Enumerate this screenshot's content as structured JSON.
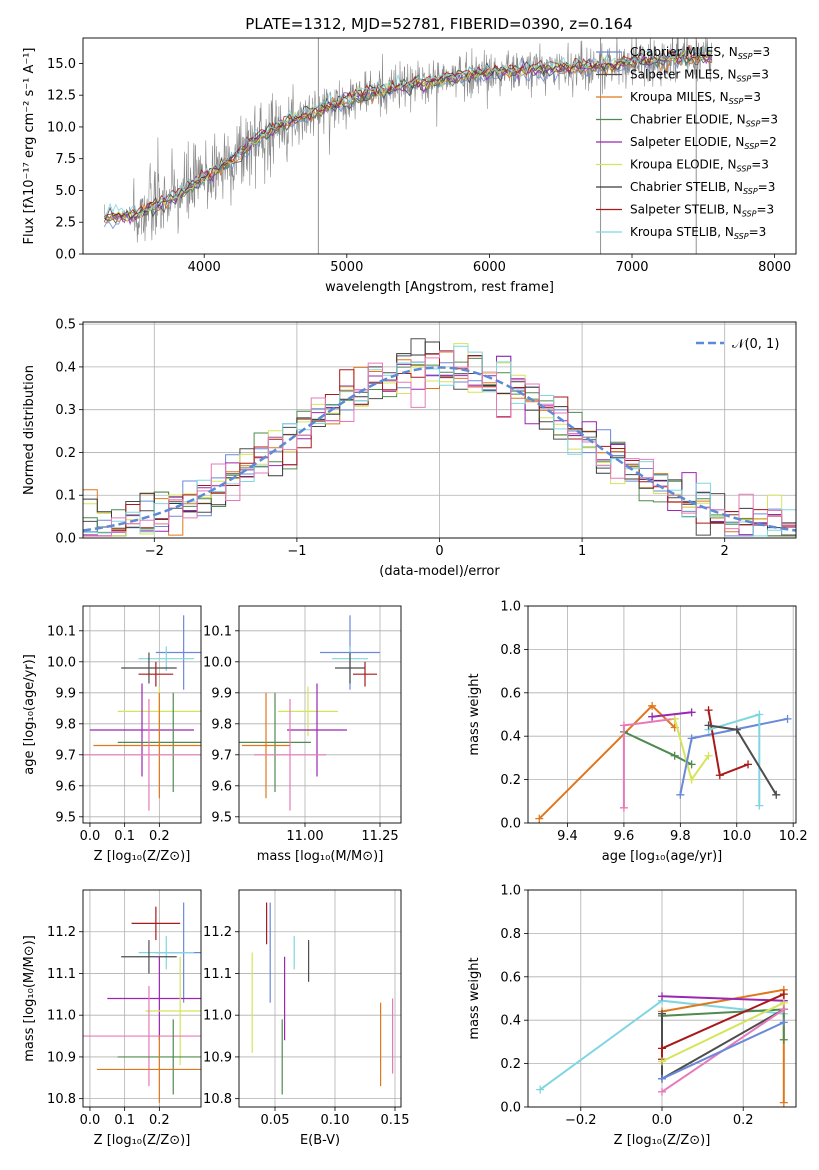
{
  "title": "PLATE=1312, MJD=52781, FIBERID=0390, z=0.164",
  "colors": {
    "Chabrier MILES": "#6a89d8",
    "Salpeter MILES": "#4d4d4d",
    "Kroupa MILES": "#e0771c",
    "Chabrier ELODIE": "#4f8a4f",
    "Salpeter ELODIE": "#9b27b0",
    "Kroupa ELODIE": "#d6e45a",
    "Chabrier STELIB": "#3a3a3a",
    "Salpeter STELIB": "#a81a1a",
    "Kroupa STELIB": "#7fd6e0",
    "pink": "#e67ab8",
    "normal_curve": "#5b8ad6",
    "spectrum_gray": "#888888"
  },
  "chart_data": [
    {
      "id": "spectrum",
      "type": "line",
      "title": "PLATE=1312, MJD=52781, FIBERID=0390, z=0.164",
      "xlabel": "wavelength [Angstrom, rest frame]",
      "ylabel": "Flux [fλ10⁻¹⁷ erg cm⁻² s⁻¹ A⁻¹]",
      "xlim": [
        3150,
        8150
      ],
      "ylim": [
        0,
        17
      ],
      "xticks": [
        4000,
        5000,
        6000,
        7000,
        8000
      ],
      "yticks": [
        0.0,
        2.5,
        5.0,
        7.5,
        10.0,
        12.5,
        15.0
      ],
      "grid": false,
      "legend_position": "top-right",
      "legend": [
        {
          "name": "Chabrier MILES",
          "nssp": "3",
          "color": "Chabrier MILES"
        },
        {
          "name": "Salpeter MILES",
          "nssp": "3",
          "color": "Salpeter MILES"
        },
        {
          "name": "Kroupa MILES",
          "nssp": "3",
          "color": "Kroupa MILES"
        },
        {
          "name": "Chabrier ELODIE",
          "nssp": "3",
          "color": "Chabrier ELODIE"
        },
        {
          "name": "Salpeter ELODIE",
          "nssp": "2",
          "color": "Salpeter ELODIE"
        },
        {
          "name": "Kroupa ELODIE",
          "nssp": "3",
          "color": "Kroupa ELODIE"
        },
        {
          "name": "Chabrier STELIB",
          "nssp": "3",
          "color": "Chabrier STELIB"
        },
        {
          "name": "Salpeter STELIB",
          "nssp": "3",
          "color": "Salpeter STELIB"
        },
        {
          "name": "Kroupa STELIB",
          "nssp": "3",
          "color": "Kroupa STELIB"
        }
      ],
      "continuum": {
        "x": [
          3250,
          3500,
          3600,
          3800,
          4000,
          4200,
          4400,
          4600,
          4800,
          5000,
          5200,
          5400,
          5600,
          5800,
          6000,
          6200,
          6400,
          6600,
          6800,
          7000,
          7200,
          7400
        ],
        "y": [
          2.9,
          3.0,
          3.5,
          4.5,
          6.0,
          7.5,
          9.3,
          10.5,
          11.3,
          12.2,
          12.8,
          13.2,
          13.6,
          14.0,
          14.3,
          14.4,
          14.6,
          14.7,
          14.8,
          15.1,
          15.3,
          15.5
        ]
      },
      "spikes": [
        {
          "x": 4800,
          "y_top": 17.0
        },
        {
          "x": 6780,
          "y_top": 17.0
        },
        {
          "x": 7450,
          "y_top": 17.0
        }
      ]
    },
    {
      "id": "residuals",
      "type": "histogram",
      "xlabel": "(data-model)/error",
      "ylabel": "Normed distribution",
      "xlim": [
        -2.5,
        2.5
      ],
      "ylim": [
        0,
        0.505
      ],
      "xticks": [
        -2,
        -1,
        0,
        1,
        2
      ],
      "yticks": [
        0.0,
        0.1,
        0.2,
        0.3,
        0.4,
        0.5
      ],
      "grid": true,
      "legend_position": "top-right",
      "legend": [
        {
          "name": "𝒩(0, 1)",
          "color": "normal_curve",
          "style": "dashed"
        }
      ],
      "bin_width": 0.1
    },
    {
      "id": "age_vs_Z",
      "type": "errorbar",
      "xlabel": "Z [log₁₀(Z/Z⊙)]",
      "ylabel": "age  [log₁₀(age/yr)]",
      "xlim": [
        -0.02,
        0.32
      ],
      "ylim": [
        9.48,
        10.18
      ],
      "xticks": [
        0.0,
        0.1,
        0.2
      ],
      "yticks": [
        9.5,
        9.6,
        9.7,
        9.8,
        9.9,
        10.0,
        10.1
      ],
      "grid": true,
      "points": [
        {
          "color": "Chabrier MILES",
          "x": 0.27,
          "xerr": 0.08,
          "y": 10.03,
          "yerr": 0.12
        },
        {
          "color": "Kroupa STELIB",
          "x": 0.22,
          "xerr": 0.08,
          "y": 10.01,
          "yerr": 0.04
        },
        {
          "color": "Salpeter MILES",
          "x": 0.17,
          "xerr": 0.08,
          "y": 9.98,
          "yerr": 0.05
        },
        {
          "color": "Salpeter STELIB",
          "x": 0.19,
          "xerr": 0.05,
          "y": 9.96,
          "yerr": 0.04
        },
        {
          "color": "Kroupa ELODIE",
          "x": 0.2,
          "xerr": 0.12,
          "y": 9.84,
          "yerr": 0.08
        },
        {
          "color": "Salpeter ELODIE",
          "x": 0.15,
          "xerr": 0.15,
          "y": 9.78,
          "yerr": 0.15
        },
        {
          "color": "Chabrier ELODIE",
          "x": 0.24,
          "xerr": 0.16,
          "y": 9.74,
          "yerr": 0.16
        },
        {
          "color": "Kroupa MILES",
          "x": 0.2,
          "xerr": 0.19,
          "y": 9.73,
          "yerr": 0.17
        },
        {
          "color": "pink",
          "x": 0.17,
          "xerr": 0.19,
          "y": 9.7,
          "yerr": 0.18
        }
      ]
    },
    {
      "id": "age_vs_mass",
      "type": "errorbar",
      "xlabel": "mass [log₁₀(M/M⊙)]",
      "ylabel": "",
      "xlim": [
        10.78,
        11.32
      ],
      "ylim": [
        9.48,
        10.18
      ],
      "xticks": [
        11.0,
        11.25
      ],
      "yticks": [
        9.5,
        9.6,
        9.7,
        9.8,
        9.9,
        10.0,
        10.1
      ],
      "grid": true,
      "points": [
        {
          "color": "Chabrier MILES",
          "x": 11.15,
          "xerr": 0.1,
          "y": 10.03,
          "yerr": 0.12
        },
        {
          "color": "Kroupa STELIB",
          "x": 11.15,
          "xerr": 0.06,
          "y": 10.01,
          "yerr": 0.04
        },
        {
          "color": "Salpeter MILES",
          "x": 11.15,
          "xerr": 0.05,
          "y": 9.98,
          "yerr": 0.05
        },
        {
          "color": "Salpeter STELIB",
          "x": 11.2,
          "xerr": 0.04,
          "y": 9.96,
          "yerr": 0.04
        },
        {
          "color": "Kroupa ELODIE",
          "x": 11.01,
          "xerr": 0.1,
          "y": 9.84,
          "yerr": 0.08
        },
        {
          "color": "Salpeter ELODIE",
          "x": 11.04,
          "xerr": 0.1,
          "y": 9.78,
          "yerr": 0.15
        },
        {
          "color": "Chabrier ELODIE",
          "x": 10.9,
          "xerr": 0.12,
          "y": 9.74,
          "yerr": 0.16
        },
        {
          "color": "Kroupa MILES",
          "x": 10.87,
          "xerr": 0.08,
          "y": 9.73,
          "yerr": 0.17
        },
        {
          "color": "pink",
          "x": 10.95,
          "xerr": 0.12,
          "y": 9.7,
          "yerr": 0.18
        }
      ]
    },
    {
      "id": "massweight_vs_age",
      "type": "line",
      "xlabel": "age  [log₁₀(age/yr)]",
      "ylabel": "mass weight",
      "xlim": [
        9.26,
        10.21
      ],
      "ylim": [
        0,
        1.0
      ],
      "xticks": [
        9.4,
        9.6,
        9.8,
        10.0,
        10.2
      ],
      "yticks": [
        0.0,
        0.2,
        0.4,
        0.6,
        0.8,
        1.0
      ],
      "grid": true,
      "series": [
        {
          "color": "Kroupa MILES",
          "x": [
            9.3,
            9.7,
            9.78
          ],
          "y": [
            0.02,
            0.54,
            0.44
          ]
        },
        {
          "color": "Chabrier ELODIE",
          "x": [
            9.6,
            9.78,
            9.84
          ],
          "y": [
            0.42,
            0.31,
            0.27
          ]
        },
        {
          "color": "pink",
          "x": [
            9.6,
            9.6,
            9.78
          ],
          "y": [
            0.07,
            0.45,
            0.48
          ]
        },
        {
          "color": "Kroupa ELODIE",
          "x": [
            9.78,
            9.84,
            9.9
          ],
          "y": [
            0.48,
            0.2,
            0.31
          ]
        },
        {
          "color": "Salpeter ELODIE",
          "x": [
            9.7,
            9.84
          ],
          "y": [
            0.49,
            0.51
          ]
        },
        {
          "color": "Chabrier MILES",
          "x": [
            9.8,
            9.84,
            10.18
          ],
          "y": [
            0.13,
            0.39,
            0.48
          ]
        },
        {
          "color": "Salpeter STELIB",
          "x": [
            9.9,
            9.94,
            10.04
          ],
          "y": [
            0.52,
            0.22,
            0.27
          ]
        },
        {
          "color": "Kroupa STELIB",
          "x": [
            9.9,
            10.08,
            10.08
          ],
          "y": [
            0.43,
            0.5,
            0.08
          ]
        },
        {
          "color": "Salpeter MILES",
          "x": [
            9.9,
            10.0,
            10.14
          ],
          "y": [
            0.45,
            0.43,
            0.13
          ]
        }
      ]
    },
    {
      "id": "mass_vs_Z",
      "type": "errorbar",
      "xlabel": "Z [log₁₀(Z/Z⊙)]",
      "ylabel": "mass [log₁₀(M/M⊙)]",
      "xlim": [
        -0.02,
        0.32
      ],
      "ylim": [
        10.78,
        11.3
      ],
      "xticks": [
        0.0,
        0.1,
        0.2
      ],
      "yticks": [
        10.8,
        10.9,
        11.0,
        11.1,
        11.2
      ],
      "grid": true,
      "points": [
        {
          "color": "Salpeter STELIB",
          "x": 0.19,
          "xerr": 0.07,
          "y": 11.22,
          "yerr": 0.04
        },
        {
          "color": "Chabrier MILES",
          "x": 0.27,
          "xerr": 0.08,
          "y": 11.15,
          "yerr": 0.12
        },
        {
          "color": "Kroupa STELIB",
          "x": 0.22,
          "xerr": 0.08,
          "y": 11.15,
          "yerr": 0.04
        },
        {
          "color": "Salpeter MILES",
          "x": 0.17,
          "xerr": 0.08,
          "y": 11.14,
          "yerr": 0.04
        },
        {
          "color": "Salpeter ELODIE",
          "x": 0.2,
          "xerr": 0.15,
          "y": 11.04,
          "yerr": 0.1
        },
        {
          "color": "Kroupa ELODIE",
          "x": 0.26,
          "xerr": 0.1,
          "y": 11.01,
          "yerr": 0.13
        },
        {
          "color": "pink",
          "x": 0.17,
          "xerr": 0.19,
          "y": 10.95,
          "yerr": 0.12
        },
        {
          "color": "Chabrier ELODIE",
          "x": 0.24,
          "xerr": 0.16,
          "y": 10.9,
          "yerr": 0.09
        },
        {
          "color": "Kroupa MILES",
          "x": 0.2,
          "xerr": 0.18,
          "y": 10.87,
          "yerr": 0.08
        }
      ]
    },
    {
      "id": "mass_vs_ebv",
      "type": "errorbar",
      "xlabel": "E(B-V)",
      "ylabel": "",
      "xlim": [
        0.02,
        0.155
      ],
      "ylim": [
        10.78,
        11.3
      ],
      "xticks": [
        0.05,
        0.1,
        0.15
      ],
      "yticks": [
        10.8,
        10.9,
        11.0,
        11.1,
        11.2
      ],
      "grid": true,
      "points": [
        {
          "color": "Salpeter STELIB",
          "x": 0.043,
          "xerr": 0,
          "y": 11.22,
          "yerr": 0.05
        },
        {
          "color": "Chabrier MILES",
          "x": 0.046,
          "xerr": 0,
          "y": 11.15,
          "yerr": 0.12
        },
        {
          "color": "Salpeter ELODIE",
          "x": 0.058,
          "xerr": 0,
          "y": 11.04,
          "yerr": 0.1
        },
        {
          "color": "Kroupa STELIB",
          "x": 0.066,
          "xerr": 0,
          "y": 11.15,
          "yerr": 0.04
        },
        {
          "color": "Salpeter MILES",
          "x": 0.078,
          "xerr": 0,
          "y": 11.13,
          "yerr": 0.05
        },
        {
          "color": "Kroupa ELODIE",
          "x": 0.031,
          "xerr": 0,
          "y": 11.03,
          "yerr": 0.12
        },
        {
          "color": "Chabrier ELODIE",
          "x": 0.056,
          "xerr": 0,
          "y": 10.9,
          "yerr": 0.09
        },
        {
          "color": "Kroupa MILES",
          "x": 0.138,
          "xerr": 0,
          "y": 10.93,
          "yerr": 0.1
        },
        {
          "color": "pink",
          "x": 0.148,
          "xerr": 0,
          "y": 10.95,
          "yerr": 0.09
        }
      ]
    },
    {
      "id": "massweight_vs_Z",
      "type": "line",
      "xlabel": "Z [log₁₀(Z/Z⊙)]",
      "ylabel": "mass weight",
      "xlim": [
        -0.33,
        0.33
      ],
      "ylim": [
        0,
        1.0
      ],
      "xticks": [
        -0.2,
        0.0,
        0.2
      ],
      "yticks": [
        0.0,
        0.2,
        0.4,
        0.6,
        0.8,
        1.0
      ],
      "grid": true,
      "series": [
        {
          "color": "Kroupa STELIB",
          "x": [
            -0.3,
            0.0,
            0.3
          ],
          "y": [
            0.08,
            0.49,
            0.43
          ]
        },
        {
          "color": "Kroupa MILES",
          "x": [
            0.0,
            0.3,
            0.3
          ],
          "y": [
            0.44,
            0.54,
            0.02
          ]
        },
        {
          "color": "Salpeter ELODIE",
          "x": [
            0.0,
            0.3
          ],
          "y": [
            0.51,
            0.49
          ]
        },
        {
          "color": "Chabrier ELODIE",
          "x": [
            0.0,
            0.3,
            0.3
          ],
          "y": [
            0.42,
            0.45,
            0.31
          ]
        },
        {
          "color": "Salpeter MILES",
          "x": [
            0.0,
            0.0,
            0.3
          ],
          "y": [
            0.43,
            0.13,
            0.45
          ]
        },
        {
          "color": "Salpeter STELIB",
          "x": [
            0.0,
            0.0,
            0.3
          ],
          "y": [
            0.22,
            0.27,
            0.52
          ]
        },
        {
          "color": "Kroupa ELODIE",
          "x": [
            0.0,
            0.3
          ],
          "y": [
            0.21,
            0.48
          ]
        },
        {
          "color": "pink",
          "x": [
            0.0,
            0.3
          ],
          "y": [
            0.07,
            0.45
          ]
        },
        {
          "color": "Chabrier MILES",
          "x": [
            0.0,
            0.3
          ],
          "y": [
            0.13,
            0.39
          ]
        }
      ]
    }
  ]
}
